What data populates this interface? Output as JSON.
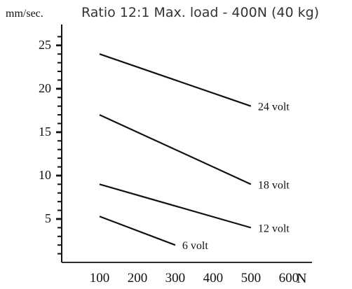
{
  "chart_data": {
    "type": "line",
    "ylabel": "mm/sec.",
    "title": "Ratio 12:1  Max. load - 400N (40 kg)",
    "xlabel": "N",
    "x_ticks": [
      "100",
      "200",
      "300",
      "400",
      "500",
      "600"
    ],
    "y_ticks": [
      "5",
      "10",
      "15",
      "20",
      "25"
    ],
    "xlim": [
      0,
      680
    ],
    "ylim": [
      0,
      27
    ],
    "grid": false,
    "colors": {
      "axis": "#111111",
      "series": "#111111",
      "title": "#333333"
    },
    "series": [
      {
        "name": "24 volt",
        "x": [
          100,
          500
        ],
        "y": [
          24,
          18
        ]
      },
      {
        "name": "18 volt",
        "x": [
          100,
          500
        ],
        "y": [
          17,
          9
        ]
      },
      {
        "name": "12 volt",
        "x": [
          100,
          500
        ],
        "y": [
          9,
          4
        ]
      },
      {
        "name": "6 volt",
        "x": [
          100,
          300
        ],
        "y": [
          5.3,
          2
        ]
      }
    ]
  }
}
